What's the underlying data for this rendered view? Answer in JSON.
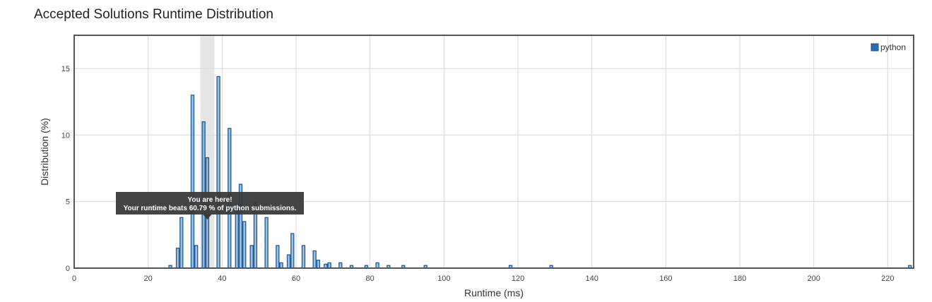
{
  "title": "Accepted Solutions Runtime Distribution",
  "chart_data": {
    "type": "bar",
    "xlabel": "Runtime (ms)",
    "ylabel": "Distribution (%)",
    "xlim": [
      0,
      227
    ],
    "ylim": [
      0,
      17.5
    ],
    "x_ticks": [
      0,
      20,
      40,
      60,
      80,
      100,
      120,
      140,
      160,
      180,
      200,
      220
    ],
    "y_ticks": [
      0,
      5,
      10,
      15
    ],
    "grid": true,
    "legend_position": "top-right",
    "highlight_x": 36,
    "series": [
      {
        "name": "python",
        "color": "#4f8cc9",
        "points": [
          {
            "x": 26,
            "y": 0.2
          },
          {
            "x": 28,
            "y": 1.5
          },
          {
            "x": 29,
            "y": 3.8
          },
          {
            "x": 32,
            "y": 13.0
          },
          {
            "x": 33,
            "y": 1.7
          },
          {
            "x": 35,
            "y": 11.0
          },
          {
            "x": 36,
            "y": 8.3
          },
          {
            "x": 39,
            "y": 14.4
          },
          {
            "x": 42,
            "y": 10.5
          },
          {
            "x": 44,
            "y": 4.8
          },
          {
            "x": 45,
            "y": 6.3
          },
          {
            "x": 46,
            "y": 3.5
          },
          {
            "x": 48,
            "y": 1.7
          },
          {
            "x": 49,
            "y": 4.9
          },
          {
            "x": 52,
            "y": 3.8
          },
          {
            "x": 55,
            "y": 1.7
          },
          {
            "x": 56,
            "y": 0.4
          },
          {
            "x": 58,
            "y": 1.0
          },
          {
            "x": 59,
            "y": 2.6
          },
          {
            "x": 62,
            "y": 1.7
          },
          {
            "x": 65,
            "y": 1.3
          },
          {
            "x": 66,
            "y": 0.6
          },
          {
            "x": 68,
            "y": 0.3
          },
          {
            "x": 69,
            "y": 0.4
          },
          {
            "x": 72,
            "y": 0.4
          },
          {
            "x": 75,
            "y": 0.2
          },
          {
            "x": 79,
            "y": 0.2
          },
          {
            "x": 82,
            "y": 0.4
          },
          {
            "x": 85,
            "y": 0.2
          },
          {
            "x": 89,
            "y": 0.2
          },
          {
            "x": 95,
            "y": 0.2
          },
          {
            "x": 118,
            "y": 0.2
          },
          {
            "x": 129,
            "y": 0.2
          },
          {
            "x": 226,
            "y": 0.2
          }
        ]
      }
    ],
    "tooltip": {
      "line1": "You are here!",
      "line2": "Your runtime beats 60.79 % of python submissions."
    }
  }
}
